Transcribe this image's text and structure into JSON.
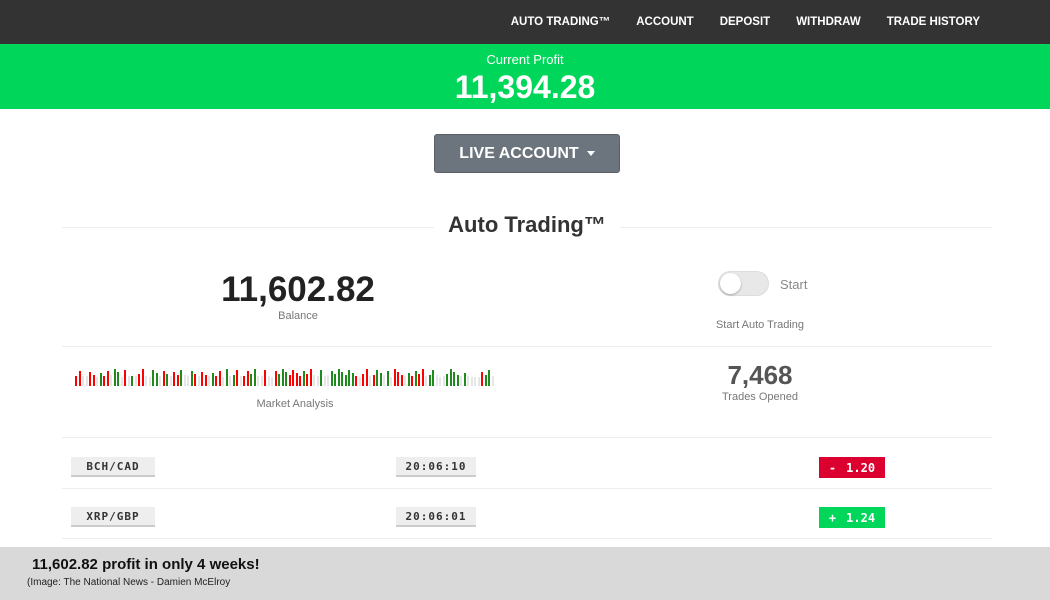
{
  "nav": [
    "AUTO TRADING™",
    "ACCOUNT",
    "DEPOSIT",
    "WITHDRAW",
    "TRADE HISTORY"
  ],
  "profit": {
    "label": "Current Profit",
    "value": "11,394.28"
  },
  "account_button": "LIVE ACCOUNT",
  "section_title": "Auto Trading™",
  "balance": {
    "value": "11,602.82",
    "label": "Balance"
  },
  "auto": {
    "toggle_on": false,
    "start": "Start",
    "label": "Start Auto Trading"
  },
  "market": {
    "label": "Market Analysis",
    "colors": {
      "up": "#1f8b1f",
      "down": "#ff0000",
      "neutral": "#e6e6e6"
    }
  },
  "trades": {
    "value": "7,468",
    "label": "Trades Opened"
  },
  "rows": [
    {
      "pair": "BCH/CAD",
      "time": "20:06:10",
      "sign": "-",
      "change": "1.20",
      "color": "#dc0030"
    },
    {
      "pair": "XRP/GBP",
      "time": "20:06:01",
      "sign": "+",
      "change": "1.24",
      "color": "#00d75a"
    }
  ],
  "caption": {
    "headline": "11,602.82 profit in only 4 weeks!",
    "source": "(Image:  The National News - Damien McElroy"
  }
}
